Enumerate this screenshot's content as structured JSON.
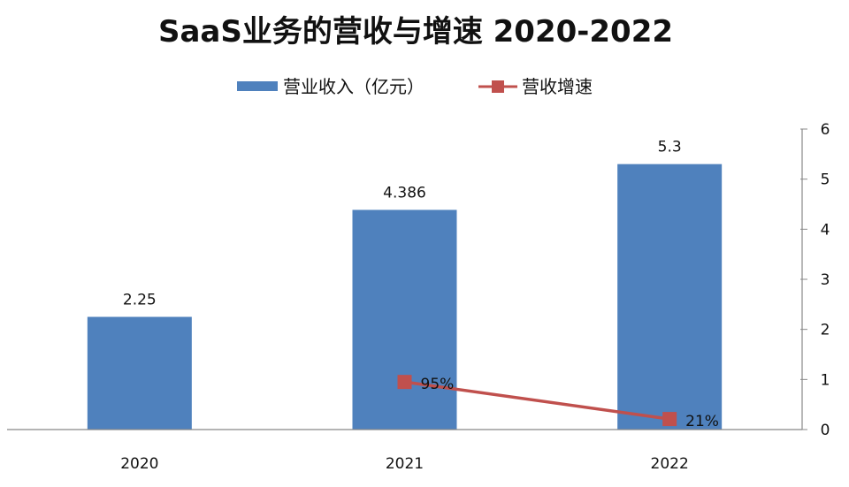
{
  "chart_data": {
    "type": "bar",
    "title": "SaaS业务的营收与增速 2020-2022",
    "categories": [
      "2020",
      "2021",
      "2022"
    ],
    "series": [
      {
        "name": "营业收入（亿元）",
        "type": "bar",
        "values": [
          2.25,
          4.386,
          5.3
        ],
        "labels": [
          "2.25",
          "4.386",
          "5.3"
        ],
        "color": "#4f81bd"
      },
      {
        "name": "营收增速",
        "type": "line",
        "marker": "square",
        "values": [
          null,
          0.95,
          0.21
        ],
        "labels": [
          null,
          "95%",
          "21%"
        ],
        "color": "#c0504d"
      }
    ],
    "yaxis": {
      "position": "right",
      "ylim": [
        0,
        6
      ],
      "ticks": [
        "0",
        "1",
        "2",
        "3",
        "4",
        "5",
        "6"
      ]
    },
    "grid": false,
    "legend": "top"
  }
}
